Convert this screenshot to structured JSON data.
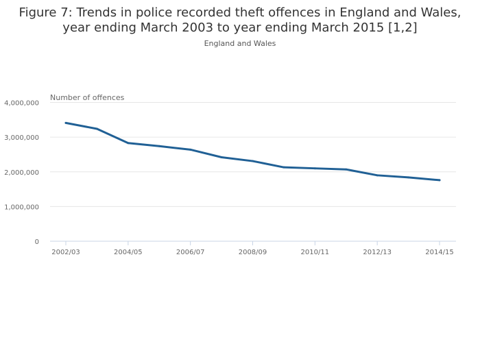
{
  "chart_data": {
    "type": "line",
    "title_line1": "Figure 7: Trends in police recorded theft offences in England and Wales,",
    "title_line2": "year ending March 2003 to year ending March 2015 [1,2]",
    "subtitle": "England and Wales",
    "ylabel": "Number of offences",
    "xlabel": "",
    "ylim": [
      0,
      4000000
    ],
    "yticks": [
      0,
      1000000,
      2000000,
      3000000,
      4000000
    ],
    "ytick_labels": [
      "0",
      "1,000,000",
      "2,000,000",
      "3,000,000",
      "4,000,000"
    ],
    "categories": [
      "2002/03",
      "2003/04",
      "2004/05",
      "2005/06",
      "2006/07",
      "2007/08",
      "2008/09",
      "2009/10",
      "2010/11",
      "2011/12",
      "2012/13",
      "2013/14",
      "2014/15"
    ],
    "xtick_labels": [
      "2002/03",
      "2004/05",
      "2006/07",
      "2008/09",
      "2010/11",
      "2012/13",
      "2014/15"
    ],
    "series": [
      {
        "name": "Theft offences",
        "color": "#206095",
        "values": [
          3410000,
          3240000,
          2830000,
          2740000,
          2640000,
          2420000,
          2310000,
          2130000,
          2100000,
          2070000,
          1900000,
          1840000,
          1760000
        ]
      }
    ],
    "grid": true,
    "legend": "none"
  }
}
